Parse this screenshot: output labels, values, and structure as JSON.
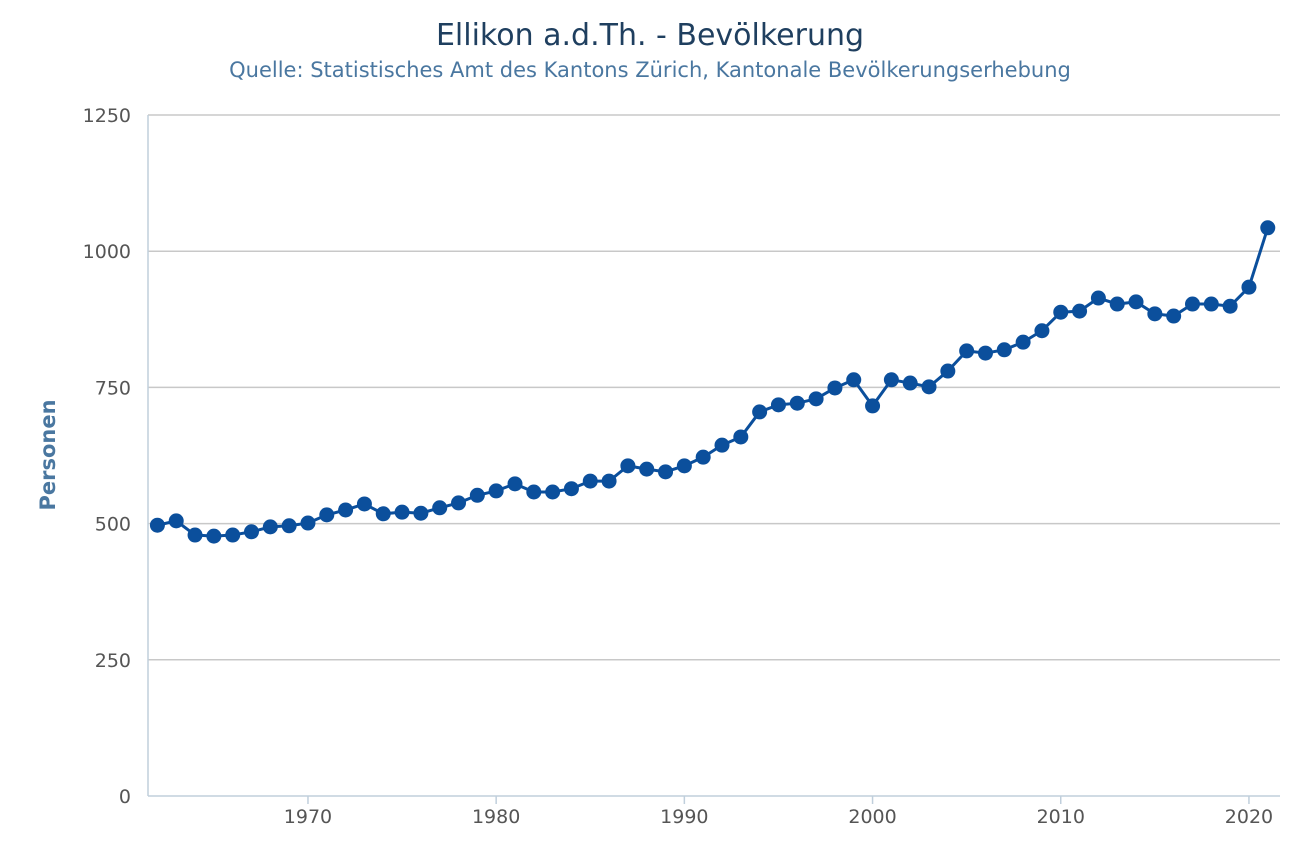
{
  "chart_data": {
    "type": "line",
    "title": "Ellikon a.d.Th. - Bevölkerung",
    "subtitle": "Quelle: Statistisches Amt des Kantons Zürich, Kantonale Bevölkerungserhebung",
    "xlabel": "",
    "ylabel": "Personen",
    "xlim": [
      1961.5,
      2021.65
    ],
    "ylim": [
      0,
      1250
    ],
    "xticks": [
      1970,
      1980,
      1990,
      2000,
      2010,
      2020
    ],
    "yticks": [
      0,
      250,
      500,
      750,
      1000,
      1250
    ],
    "grid": true,
    "color": "#0b4f9c",
    "series": [
      {
        "name": "Personen",
        "x": [
          1962,
          1963,
          1964,
          1965,
          1966,
          1967,
          1968,
          1969,
          1970,
          1971,
          1972,
          1973,
          1974,
          1975,
          1976,
          1977,
          1978,
          1979,
          1980,
          1981,
          1982,
          1983,
          1984,
          1985,
          1986,
          1987,
          1988,
          1989,
          1990,
          1991,
          1992,
          1993,
          1994,
          1995,
          1996,
          1997,
          1998,
          1999,
          2000,
          2001,
          2002,
          2003,
          2004,
          2005,
          2006,
          2007,
          2008,
          2009,
          2010,
          2011,
          2012,
          2013,
          2014,
          2015,
          2016,
          2017,
          2018,
          2019,
          2020,
          2021
        ],
        "values": [
          497,
          505,
          479,
          477,
          479,
          485,
          494,
          496,
          501,
          516,
          525,
          536,
          518,
          521,
          519,
          529,
          538,
          552,
          560,
          573,
          558,
          558,
          564,
          578,
          578,
          606,
          600,
          595,
          606,
          622,
          644,
          659,
          705,
          718,
          721,
          729,
          749,
          764,
          716,
          764,
          758,
          751,
          780,
          817,
          813,
          819,
          833,
          854,
          888,
          890,
          914,
          903,
          907,
          885,
          881,
          903,
          903,
          899,
          934,
          1043
        ]
      }
    ]
  }
}
